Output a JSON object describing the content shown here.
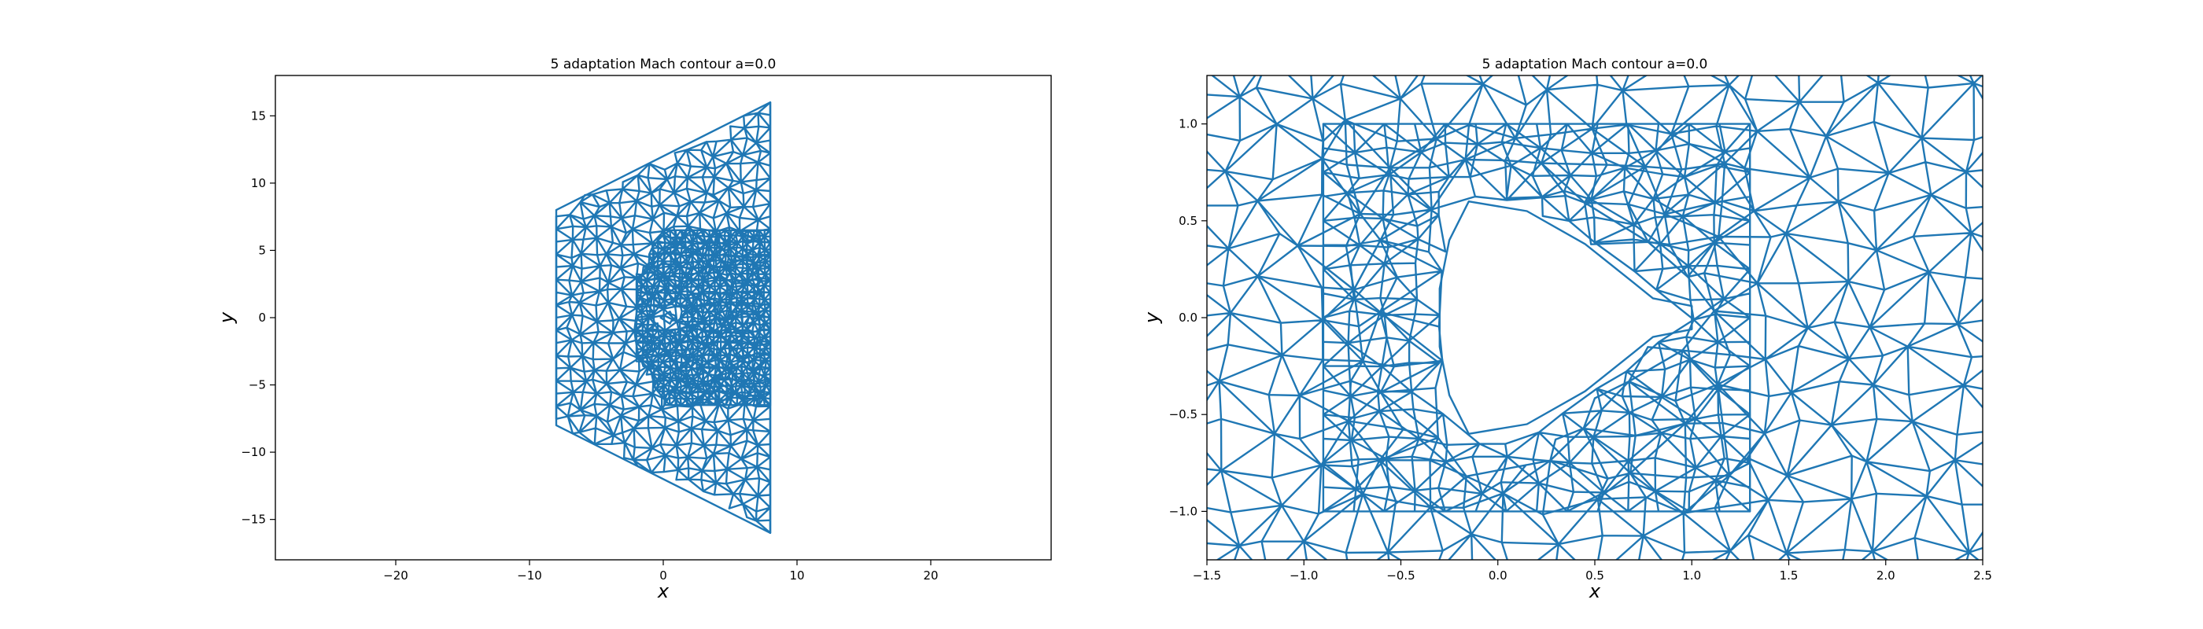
{
  "chart_data": [
    {
      "type": "mesh",
      "title": "5 adaptation Mach contour a=0.0",
      "xlabel": "x",
      "ylabel": "y",
      "xlim": [
        -29,
        29
      ],
      "ylim": [
        -18,
        18
      ],
      "xticks": [
        -20,
        -10,
        0,
        10,
        20
      ],
      "xtick_labels": [
        "−20",
        "−10",
        "0",
        "10",
        "20"
      ],
      "yticks": [
        -15,
        -10,
        -5,
        0,
        5,
        10,
        15
      ],
      "ytick_labels": [
        "−15",
        "−10",
        "−5",
        "0",
        "5",
        "10",
        "15"
      ],
      "series_color": "#1f77b4",
      "domain_outline": [
        [
          -8,
          8
        ],
        [
          8,
          16
        ],
        [
          8,
          -16
        ],
        [
          -8,
          -8
        ]
      ],
      "body_outline": [
        [
          -0.2,
          0
        ],
        [
          0.5,
          0.45
        ],
        [
          0.6,
          0.25
        ],
        [
          0.9,
          0.15
        ],
        [
          0.9,
          -0.15
        ],
        [
          0.6,
          -0.25
        ],
        [
          0.5,
          -0.45
        ],
        [
          -0.2,
          0
        ]
      ],
      "grid": false
    },
    {
      "type": "mesh",
      "title": "5 adaptation Mach contour a=0.0",
      "xlabel": "x",
      "ylabel": "y",
      "xlim": [
        -1.5,
        2.5
      ],
      "ylim": [
        -1.25,
        1.25
      ],
      "xticks": [
        -1.5,
        -1.0,
        -0.5,
        0.0,
        0.5,
        1.0,
        1.5,
        2.0,
        2.5
      ],
      "xtick_labels": [
        "−1.5",
        "−1.0",
        "−0.5",
        "0.0",
        "0.5",
        "1.0",
        "1.5",
        "2.0",
        "2.5"
      ],
      "yticks": [
        -1.0,
        -0.5,
        0.0,
        0.5,
        1.0
      ],
      "ytick_labels": [
        "−1.0",
        "−0.5",
        "0.0",
        "0.5",
        "1.0"
      ],
      "series_color": "#1f77b4",
      "body_outline": [
        [
          -0.15,
          0.6
        ],
        [
          -0.25,
          0.4
        ],
        [
          -0.3,
          0.15
        ],
        [
          -0.3,
          -0.15
        ],
        [
          -0.25,
          -0.4
        ],
        [
          -0.15,
          -0.6
        ],
        [
          0.15,
          -0.55
        ],
        [
          0.45,
          -0.38
        ],
        [
          0.7,
          -0.18
        ],
        [
          0.8,
          -0.1
        ],
        [
          1.0,
          -0.06
        ],
        [
          1.0,
          0.06
        ],
        [
          0.8,
          0.1
        ],
        [
          0.7,
          0.18
        ],
        [
          0.45,
          0.38
        ],
        [
          0.15,
          0.55
        ],
        [
          -0.15,
          0.6
        ]
      ],
      "grid": false
    }
  ]
}
